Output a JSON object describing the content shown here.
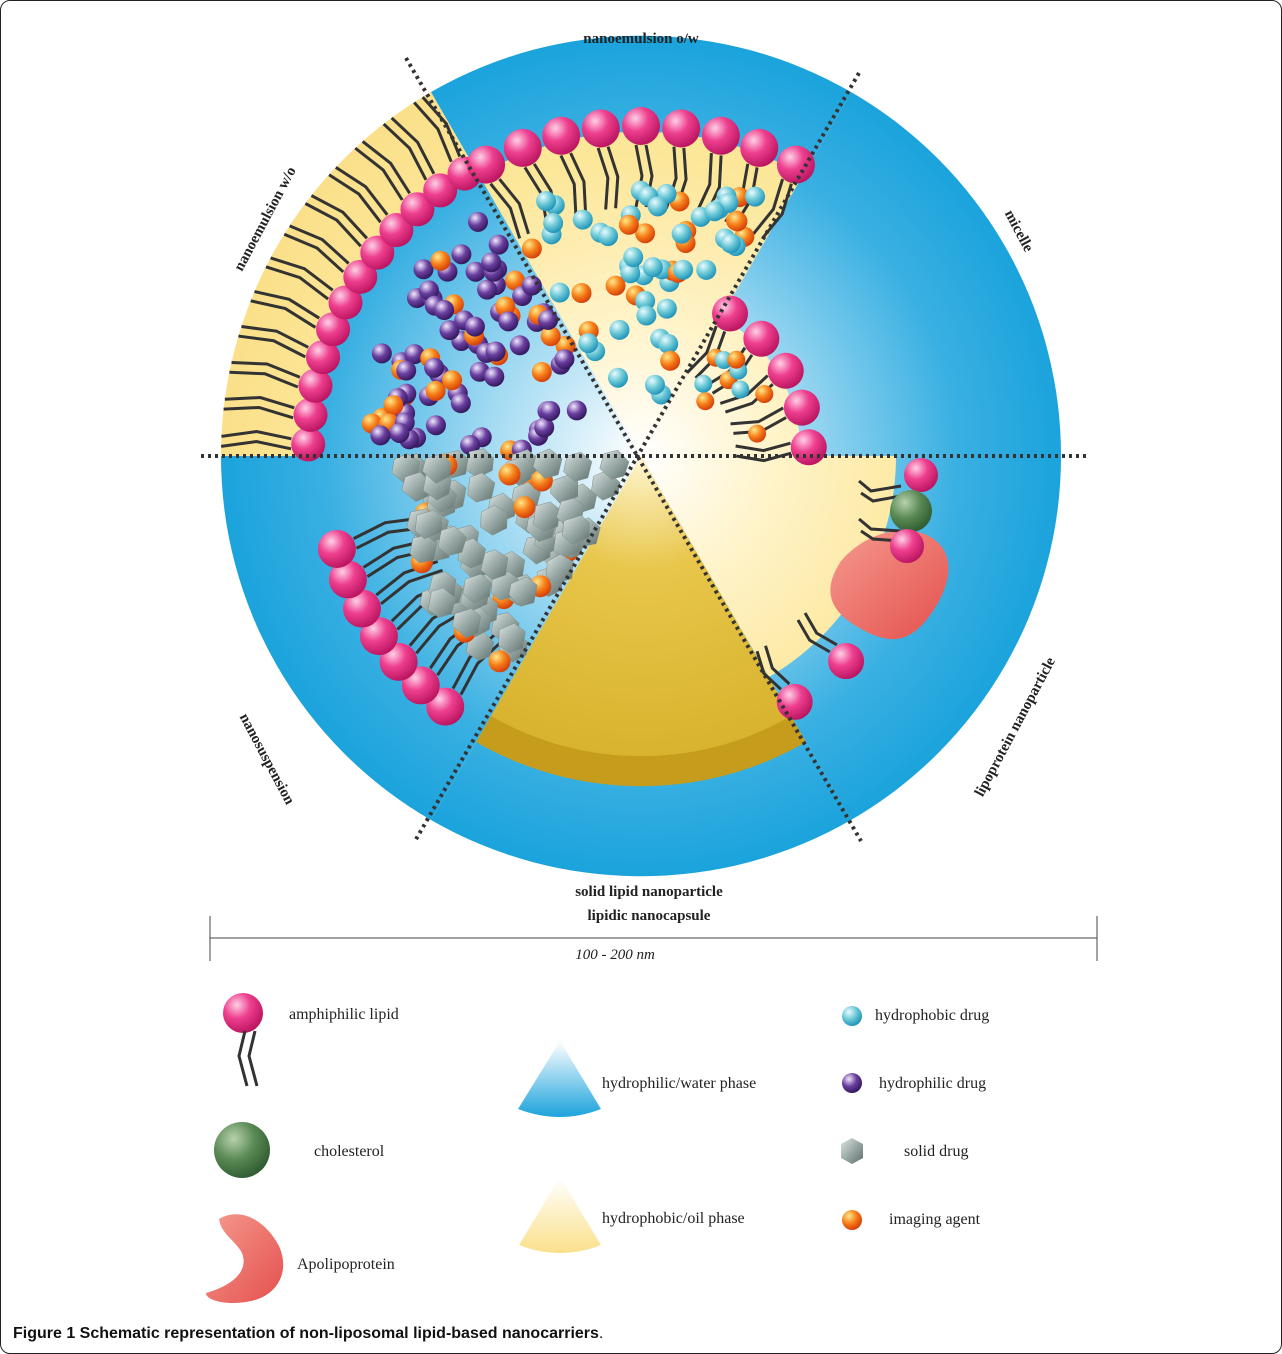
{
  "segments": {
    "top": "nanoemulsion o/w",
    "upper_left": "nanoemulsion w/o",
    "upper_right": "micelle",
    "lower_left": "nanosuspension",
    "lower_right": "lipoprotein nanoparticle",
    "bottom_line1": "solid lipid nanoparticle",
    "bottom_line2": "lipidic nanocapsule"
  },
  "scale_bar": {
    "label": "100 - 200 nm"
  },
  "legend": {
    "amphiphilic_lipid": "amphiphilic lipid",
    "cholesterol": "cholesterol",
    "apolipoprotein": "Apolipoprotein",
    "water_phase": "hydrophilic/water phase",
    "oil_phase": "hydrophobic/oil phase",
    "hydrophobic_drug": "hydrophobic drug",
    "hydrophilic_drug": "hydrophilic drug",
    "solid_drug": "solid drug",
    "imaging_agent": "imaging agent"
  },
  "caption": {
    "bold": "Figure 1 Schematic representation of non-liposomal lipid-based nanocarriers",
    "rest": "."
  },
  "colors": {
    "water": "#1ba3dc",
    "oil": "#fbe08a",
    "solid_lipid": "#d9b52a",
    "lipid_head": "#e8257e",
    "cholesterol": "#4f7d4c",
    "apolipoprotein": "#ec6a68",
    "hydrophobic_drug": "#5cc1cf",
    "hydrophilic_drug": "#4f2b84",
    "imaging_agent": "#f46b0c",
    "solid_drug": "#8a9996"
  }
}
